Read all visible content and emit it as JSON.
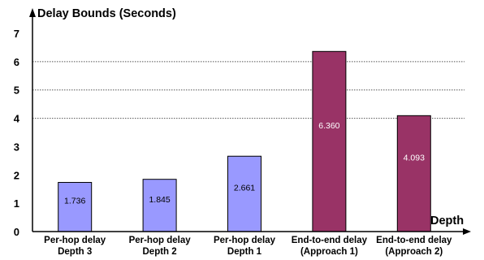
{
  "chart_data": {
    "type": "bar",
    "title": "",
    "ylabel": "Delay Bounds (Seconds)",
    "xlabel": "Depth",
    "ylim": [
      0,
      7
    ],
    "yticks": [
      0,
      1,
      2,
      3,
      4,
      5,
      6,
      7
    ],
    "gridlines_at": [
      4,
      5,
      6
    ],
    "categories": [
      [
        "Per-hop delay",
        "Depth 3"
      ],
      [
        "Per-hop delay",
        "Depth 2"
      ],
      [
        "Per-hop delay",
        "Depth 1"
      ],
      [
        "End-to-end delay",
        "(Approach 1)"
      ],
      [
        "End-to-end delay",
        "(Approach 2)"
      ]
    ],
    "values": [
      1.736,
      1.845,
      2.661,
      6.36,
      4.093
    ],
    "value_labels": [
      "1.736",
      "1.845",
      "2.661",
      "6.360",
      "4.093"
    ],
    "colors": [
      "#9999ff",
      "#9999ff",
      "#9999ff",
      "#993366",
      "#993366"
    ],
    "value_label_colors": [
      "#000000",
      "#000000",
      "#000000",
      "#ffffff",
      "#ffffff"
    ]
  }
}
